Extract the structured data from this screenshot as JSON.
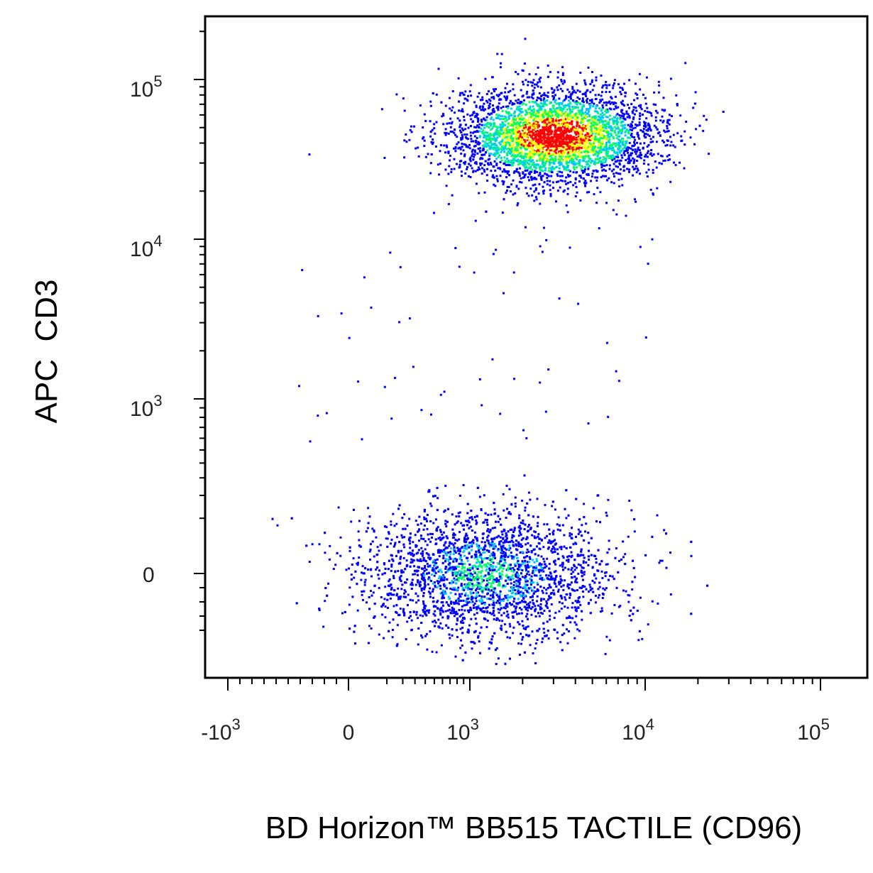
{
  "chart_data": {
    "type": "scatter",
    "title": "",
    "xlabel": "BD Horizon™ BB515 TACTILE (CD96)",
    "ylabel": "APC  CD3",
    "x_scale": "biexponential",
    "y_scale": "biexponential",
    "xlim": [
      -1500,
      200000
    ],
    "ylim": [
      -400,
      220000
    ],
    "x_tick_labels": [
      {
        "value": -1000,
        "base": "-10",
        "exp": "3"
      },
      {
        "value": 0,
        "base": "0",
        "exp": ""
      },
      {
        "value": 1000,
        "base": "10",
        "exp": "3"
      },
      {
        "value": 10000,
        "base": "10",
        "exp": "4"
      },
      {
        "value": 100000,
        "base": "10",
        "exp": "5"
      }
    ],
    "y_tick_labels": [
      {
        "value": 0,
        "base": "0",
        "exp": ""
      },
      {
        "value": 1000,
        "base": "10",
        "exp": "3"
      },
      {
        "value": 10000,
        "base": "10",
        "exp": "4"
      },
      {
        "value": 100000,
        "base": "10",
        "exp": "5"
      }
    ],
    "density_colormap": [
      "#0000ff",
      "#00c8ff",
      "#00ff60",
      "#ffff00",
      "#ff0000"
    ],
    "populations": [
      {
        "description_shown": "CD3+ cluster",
        "center_x": 3000,
        "center_y": 45000,
        "x_range": [
          250,
          18000
        ],
        "y_range": [
          12000,
          140000
        ],
        "peak_density": "high"
      },
      {
        "description_shown": "CD3- cluster",
        "center_x": 1200,
        "center_y": 0,
        "x_range": [
          -500,
          10000
        ],
        "y_range": [
          -250,
          900
        ],
        "peak_density": "medium"
      }
    ],
    "grid": false,
    "legend": "none"
  }
}
